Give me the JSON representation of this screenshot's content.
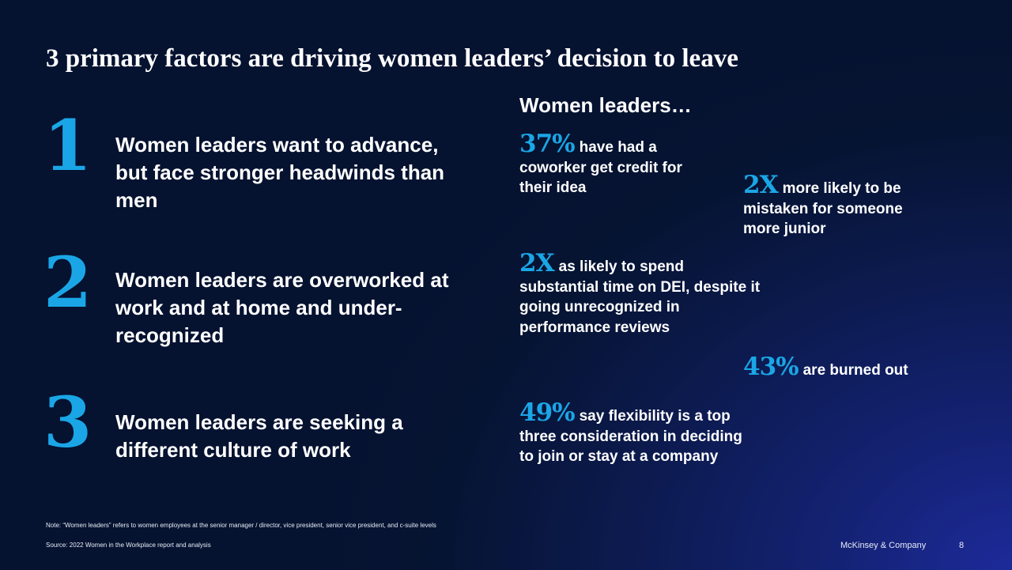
{
  "title": "3 primary factors are driving women leaders’ decision to leave",
  "factors": [
    {
      "number": "1",
      "text": "Women leaders want to advance, but face stronger headwinds than men"
    },
    {
      "number": "2",
      "text": "Women leaders are overworked at work and at home and under-recognized"
    },
    {
      "number": "3",
      "text": "Women leaders are seeking a different culture of work"
    }
  ],
  "stats_heading": "Women leaders…",
  "stats": [
    {
      "value": "37%",
      "text": "have had a coworker get credit for their idea"
    },
    {
      "value": "2X",
      "text": "more likely to be mistaken for someone more junior"
    },
    {
      "value": "2X",
      "text": "as likely to spend substantial time on DEI, despite it going unrecognized in performance reviews"
    },
    {
      "value": "43%",
      "text": "are burned out"
    },
    {
      "value": "49%",
      "text": "say flexibility is a top three consideration in deciding to join or stay at a company"
    }
  ],
  "footer": {
    "note": "Note: “Women leaders” refers to women employees at the senior manager / director, vice president, senior vice president, and c-suite levels",
    "source": "Source: 2022 Women in the Workplace report and analysis",
    "brand": "McKinsey & Company",
    "page_number": "8"
  },
  "colors": {
    "accent": "#1aa6e6",
    "background": "#061433",
    "text": "#ffffff"
  }
}
